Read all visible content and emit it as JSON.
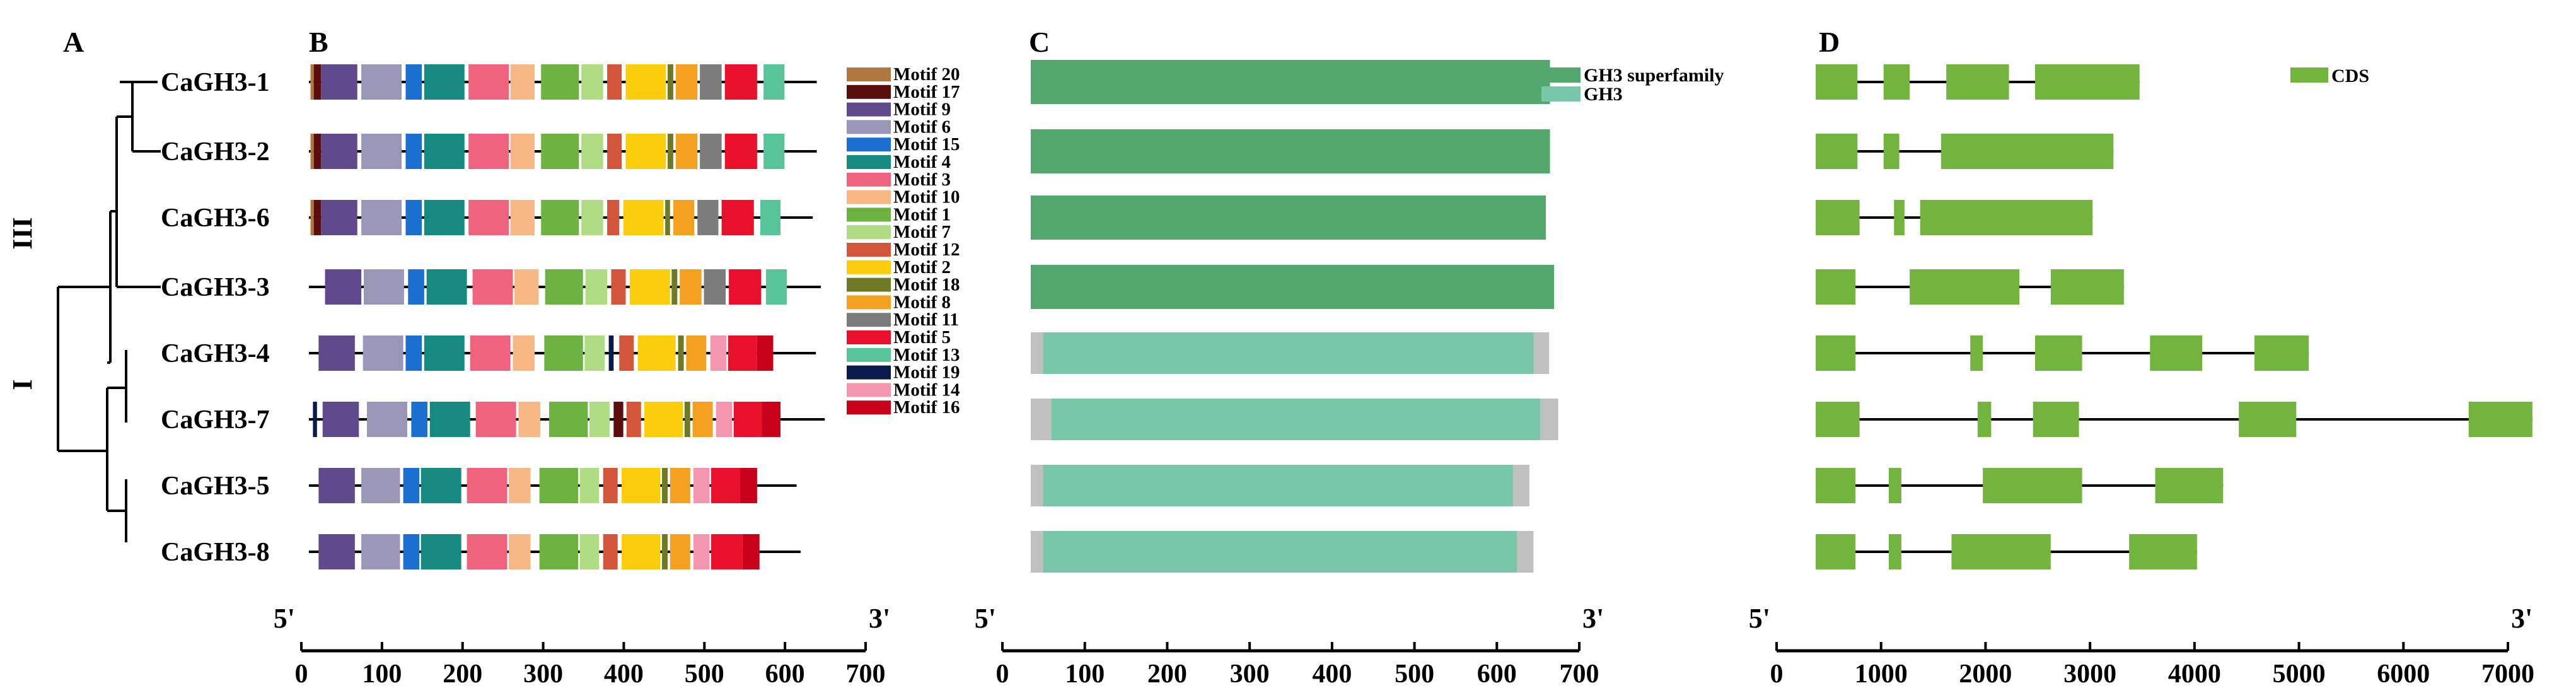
{
  "panels": {
    "a": "A",
    "b": "B",
    "c": "C",
    "d": "D"
  },
  "clades": {
    "upper": "III",
    "lower": "I"
  },
  "genes": [
    "CaGH3-1",
    "CaGH3-2",
    "CaGH3-6",
    "CaGH3-3",
    "CaGH3-4",
    "CaGH3-7",
    "CaGH3-5",
    "CaGH3-8"
  ],
  "protein_lengths": [
    630,
    630,
    625,
    635,
    629,
    640,
    605,
    610
  ],
  "motif_legend": [
    {
      "name": "Motif 20",
      "color": "#b07840"
    },
    {
      "name": "Motif 17",
      "color": "#5a0e0e"
    },
    {
      "name": "Motif 9",
      "color": "#5e4a8c"
    },
    {
      "name": "Motif 6",
      "color": "#9a96b8"
    },
    {
      "name": "Motif 15",
      "color": "#1a6fd0"
    },
    {
      "name": "Motif 4",
      "color": "#168a80"
    },
    {
      "name": "Motif 3",
      "color": "#f0637f"
    },
    {
      "name": "Motif 10",
      "color": "#f8b886"
    },
    {
      "name": "Motif 1",
      "color": "#6cb341"
    },
    {
      "name": "Motif 7",
      "color": "#b0dc84"
    },
    {
      "name": "Motif 12",
      "color": "#d4563a"
    },
    {
      "name": "Motif 2",
      "color": "#fccd0a"
    },
    {
      "name": "Motif 18",
      "color": "#6e7a26"
    },
    {
      "name": "Motif 8",
      "color": "#f4a021"
    },
    {
      "name": "Motif 11",
      "color": "#7c7c7c"
    },
    {
      "name": "Motif 5",
      "color": "#e8102b"
    },
    {
      "name": "Motif 13",
      "color": "#58c49a"
    },
    {
      "name": "Motif 19",
      "color": "#0a1a4a"
    },
    {
      "name": "Motif 14",
      "color": "#f596b0"
    },
    {
      "name": "Motif 16",
      "color": "#c8001c"
    }
  ],
  "motifs": [
    [
      [
        "Motif 20",
        2,
        6
      ],
      [
        "Motif 17",
        6,
        15
      ],
      [
        "Motif 9",
        15,
        60
      ],
      [
        "Motif 6",
        65,
        115
      ],
      [
        "Motif 15",
        120,
        140
      ],
      [
        "Motif 4",
        143,
        193
      ],
      [
        "Motif 3",
        198,
        248
      ],
      [
        "Motif 10",
        250,
        280
      ],
      [
        "Motif 1",
        288,
        335
      ],
      [
        "Motif 7",
        338,
        365
      ],
      [
        "Motif 12",
        370,
        388
      ],
      [
        "Motif 2",
        393,
        443
      ],
      [
        "Motif 18",
        445,
        452
      ],
      [
        "Motif 8",
        455,
        482
      ],
      [
        "Motif 11",
        485,
        512
      ],
      [
        "Motif 5",
        516,
        556
      ],
      [
        "Motif 13",
        564,
        590
      ]
    ],
    [
      [
        "Motif 20",
        2,
        6
      ],
      [
        "Motif 17",
        6,
        15
      ],
      [
        "Motif 9",
        15,
        60
      ],
      [
        "Motif 6",
        65,
        115
      ],
      [
        "Motif 15",
        120,
        140
      ],
      [
        "Motif 4",
        143,
        193
      ],
      [
        "Motif 3",
        198,
        248
      ],
      [
        "Motif 10",
        250,
        280
      ],
      [
        "Motif 1",
        288,
        335
      ],
      [
        "Motif 7",
        338,
        365
      ],
      [
        "Motif 12",
        370,
        388
      ],
      [
        "Motif 2",
        393,
        443
      ],
      [
        "Motif 18",
        445,
        452
      ],
      [
        "Motif 8",
        455,
        482
      ],
      [
        "Motif 11",
        485,
        512
      ],
      [
        "Motif 5",
        516,
        556
      ],
      [
        "Motif 13",
        564,
        590
      ]
    ],
    [
      [
        "Motif 20",
        2,
        6
      ],
      [
        "Motif 17",
        6,
        15
      ],
      [
        "Motif 9",
        15,
        60
      ],
      [
        "Motif 6",
        65,
        115
      ],
      [
        "Motif 15",
        120,
        140
      ],
      [
        "Motif 4",
        143,
        193
      ],
      [
        "Motif 3",
        198,
        248
      ],
      [
        "Motif 10",
        250,
        280
      ],
      [
        "Motif 1",
        288,
        335
      ],
      [
        "Motif 7",
        338,
        365
      ],
      [
        "Motif 12",
        370,
        385
      ],
      [
        "Motif 2",
        390,
        440
      ],
      [
        "Motif 18",
        442,
        448
      ],
      [
        "Motif 8",
        452,
        478
      ],
      [
        "Motif 11",
        482,
        508
      ],
      [
        "Motif 5",
        512,
        552
      ],
      [
        "Motif 13",
        560,
        585
      ]
    ],
    [
      [
        "Motif 9",
        20,
        65
      ],
      [
        "Motif 6",
        68,
        118
      ],
      [
        "Motif 15",
        123,
        143
      ],
      [
        "Motif 4",
        146,
        196
      ],
      [
        "Motif 3",
        203,
        253
      ],
      [
        "Motif 10",
        255,
        285
      ],
      [
        "Motif 1",
        293,
        340
      ],
      [
        "Motif 7",
        343,
        370
      ],
      [
        "Motif 12",
        375,
        393
      ],
      [
        "Motif 2",
        398,
        448
      ],
      [
        "Motif 18",
        450,
        457
      ],
      [
        "Motif 8",
        460,
        487
      ],
      [
        "Motif 11",
        490,
        517
      ],
      [
        "Motif 5",
        521,
        561
      ],
      [
        "Motif 13",
        567,
        593
      ]
    ],
    [
      [
        "Motif 9",
        12,
        57
      ],
      [
        "Motif 6",
        67,
        117
      ],
      [
        "Motif 15",
        120,
        140
      ],
      [
        "Motif 4",
        143,
        193
      ],
      [
        "Motif 3",
        200,
        250
      ],
      [
        "Motif 10",
        253,
        280
      ],
      [
        "Motif 1",
        292,
        340
      ],
      [
        "Motif 7",
        342,
        367
      ],
      [
        "Motif 19",
        372,
        378
      ],
      [
        "Motif 12",
        385,
        403
      ],
      [
        "Motif 2",
        408,
        455
      ],
      [
        "Motif 18",
        458,
        465
      ],
      [
        "Motif 8",
        468,
        493
      ],
      [
        "Motif 14",
        498,
        518
      ],
      [
        "Motif 5",
        520,
        556
      ],
      [
        "Motif 16",
        556,
        576
      ]
    ],
    [
      [
        "Motif 19",
        5,
        10
      ],
      [
        "Motif 9",
        17,
        62
      ],
      [
        "Motif 6",
        72,
        122
      ],
      [
        "Motif 15",
        127,
        147
      ],
      [
        "Motif 4",
        150,
        200
      ],
      [
        "Motif 3",
        207,
        257
      ],
      [
        "Motif 10",
        260,
        287
      ],
      [
        "Motif 1",
        298,
        346
      ],
      [
        "Motif 7",
        348,
        373
      ],
      [
        "Motif 17",
        378,
        390
      ],
      [
        "Motif 12",
        394,
        412
      ],
      [
        "Motif 2",
        416,
        464
      ],
      [
        "Motif 18",
        466,
        473
      ],
      [
        "Motif 8",
        476,
        501
      ],
      [
        "Motif 14",
        505,
        525
      ],
      [
        "Motif 5",
        527,
        562
      ],
      [
        "Motif 16",
        562,
        585
      ]
    ],
    [
      [
        "Motif 9",
        12,
        57
      ],
      [
        "Motif 6",
        65,
        113
      ],
      [
        "Motif 15",
        117,
        137
      ],
      [
        "Motif 4",
        139,
        189
      ],
      [
        "Motif 3",
        196,
        246
      ],
      [
        "Motif 10",
        248,
        275
      ],
      [
        "Motif 1",
        286,
        334
      ],
      [
        "Motif 7",
        336,
        360
      ],
      [
        "Motif 12",
        365,
        383
      ],
      [
        "Motif 2",
        388,
        436
      ],
      [
        "Motif 18",
        438,
        445
      ],
      [
        "Motif 8",
        448,
        473
      ],
      [
        "Motif 14",
        477,
        497
      ],
      [
        "Motif 5",
        499,
        535
      ],
      [
        "Motif 16",
        535,
        556
      ]
    ],
    [
      [
        "Motif 9",
        12,
        57
      ],
      [
        "Motif 6",
        65,
        113
      ],
      [
        "Motif 15",
        117,
        137
      ],
      [
        "Motif 4",
        139,
        189
      ],
      [
        "Motif 3",
        196,
        246
      ],
      [
        "Motif 10",
        248,
        275
      ],
      [
        "Motif 1",
        286,
        334
      ],
      [
        "Motif 7",
        336,
        360
      ],
      [
        "Motif 12",
        365,
        383
      ],
      [
        "Motif 2",
        388,
        436
      ],
      [
        "Motif 18",
        438,
        445
      ],
      [
        "Motif 8",
        448,
        473
      ],
      [
        "Motif 14",
        477,
        497
      ],
      [
        "Motif 5",
        499,
        538
      ],
      [
        "Motif 16",
        538,
        559
      ]
    ]
  ],
  "domain_legend": [
    {
      "name": "GH3 superfamily",
      "color": "#53a96d"
    },
    {
      "name": "GH3",
      "color": "#77c7a8"
    }
  ],
  "domains": [
    {
      "type": "GH3 superfamily",
      "start": 0,
      "end": 630,
      "pre": 0
    },
    {
      "type": "GH3 superfamily",
      "start": 0,
      "end": 630,
      "pre": 0
    },
    {
      "type": "GH3 superfamily",
      "start": 0,
      "end": 625,
      "pre": 0
    },
    {
      "type": "GH3 superfamily",
      "start": 0,
      "end": 635,
      "pre": 0
    },
    {
      "type": "GH3",
      "start": 15,
      "end": 610,
      "pre": 15,
      "total": 629
    },
    {
      "type": "GH3",
      "start": 25,
      "end": 618,
      "pre": 25,
      "total": 640
    },
    {
      "type": "GH3",
      "start": 15,
      "end": 585,
      "pre": 15,
      "total": 605
    },
    {
      "type": "GH3",
      "start": 15,
      "end": 590,
      "pre": 15,
      "total": 610
    }
  ],
  "gene_legend": [
    {
      "name": "CDS",
      "color": "#72b43e"
    }
  ],
  "gene_structures": [
    {
      "length": 3100,
      "exons": [
        [
          0,
          400
        ],
        [
          650,
          900
        ],
        [
          1250,
          1850
        ],
        [
          2100,
          3100
        ]
      ]
    },
    {
      "length": 2850,
      "exons": [
        [
          0,
          400
        ],
        [
          650,
          800
        ],
        [
          1200,
          2850
        ]
      ]
    },
    {
      "length": 2650,
      "exons": [
        [
          0,
          420
        ],
        [
          750,
          850
        ],
        [
          1000,
          2650
        ]
      ]
    },
    {
      "length": 2950,
      "exons": [
        [
          0,
          380
        ],
        [
          900,
          1950
        ],
        [
          2250,
          2950
        ]
      ]
    },
    {
      "length": 4720,
      "exons": [
        [
          0,
          380
        ],
        [
          1480,
          1600
        ],
        [
          2100,
          2550
        ],
        [
          3200,
          3700
        ],
        [
          4200,
          4720
        ]
      ]
    },
    {
      "length": 6860,
      "exons": [
        [
          0,
          420
        ],
        [
          1550,
          1680
        ],
        [
          2080,
          2520
        ],
        [
          4050,
          4600
        ],
        [
          6250,
          6860
        ]
      ]
    },
    {
      "length": 3900,
      "exons": [
        [
          0,
          380
        ],
        [
          700,
          820
        ],
        [
          1600,
          2550
        ],
        [
          3250,
          3900
        ]
      ]
    },
    {
      "length": 3650,
      "exons": [
        [
          0,
          380
        ],
        [
          700,
          820
        ],
        [
          1300,
          2250
        ],
        [
          3000,
          3650
        ]
      ]
    }
  ],
  "axes": {
    "b": {
      "prime5": "5'",
      "prime3": "3'",
      "max": 700,
      "ticks": [
        "0",
        "100",
        "200",
        "300",
        "400",
        "500",
        "600",
        "700"
      ]
    },
    "c": {
      "prime5": "5'",
      "prime3": "3'",
      "max": 700,
      "ticks": [
        "0",
        "100",
        "200",
        "300",
        "400",
        "500",
        "600",
        "700"
      ]
    },
    "d": {
      "prime5": "5'",
      "prime3": "3'",
      "max": 7000,
      "ticks": [
        "0",
        "1000",
        "2000",
        "3000",
        "4000",
        "5000",
        "6000",
        "7000"
      ]
    }
  },
  "colors": {
    "grey_region": "#c0c0c0",
    "line": "#000000"
  }
}
